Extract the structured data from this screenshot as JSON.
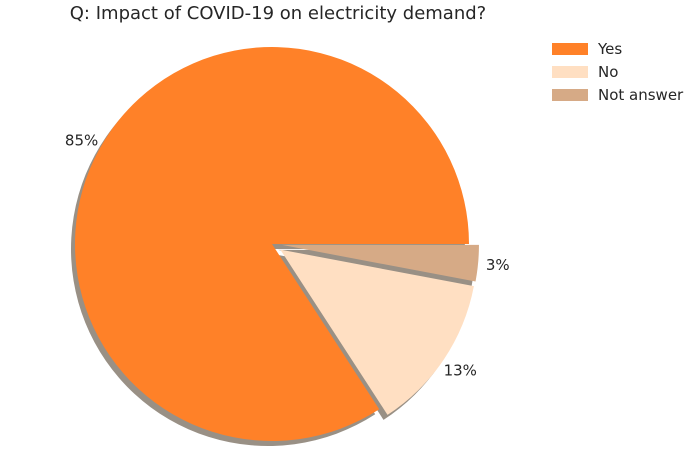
{
  "chart_data": {
    "type": "pie",
    "title": "Q: Impact of COVID-19 on electricity demand?",
    "categories": [
      "Yes",
      "No",
      "Not answer"
    ],
    "values": [
      85,
      13,
      3
    ],
    "value_labels": [
      "85%",
      "13%",
      "3%"
    ],
    "colors": [
      "#ff8128",
      "#ffdfc2",
      "#d6aa86"
    ],
    "exploded": [
      false,
      true,
      true
    ],
    "shadow": true,
    "start_angle_deg": 0,
    "direction": "counterclockwise",
    "legend": "top-right"
  }
}
